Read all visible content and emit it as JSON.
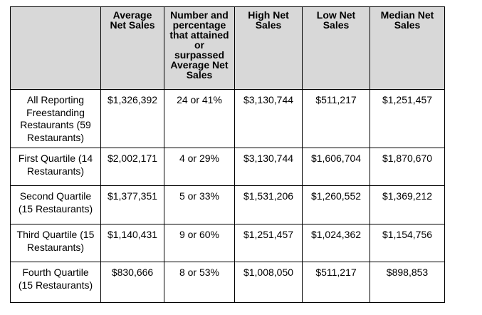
{
  "table": {
    "headers": [
      "",
      "Average Net Sales",
      "Number and percentage that attained or surpassed Average Net Sales",
      "High Net Sales",
      "Low Net Sales",
      "Median Net Sales"
    ],
    "header_lines": {
      "average": [
        "Average",
        "Net Sales"
      ],
      "attained": [
        "Number and",
        "percentage",
        "that attained",
        "or",
        "surpassed",
        "Average Net",
        "Sales"
      ],
      "high": [
        "High Net",
        "Sales"
      ],
      "low": [
        "Low Net",
        "Sales"
      ],
      "median": [
        "Median Net",
        "Sales"
      ]
    },
    "rows": [
      {
        "label_lines": [
          "All Reporting",
          "Freestanding",
          "Restaurants (59",
          "Restaurants)"
        ],
        "average": "$1,326,392",
        "attained": "24 or 41%",
        "high": "$3,130,744",
        "low": "$511,217",
        "median": "$1,251,457"
      },
      {
        "label_lines": [
          "First Quartile (14",
          "Restaurants)"
        ],
        "average": "$2,002,171",
        "attained": "4 or 29%",
        "high": "$3,130,744",
        "low": "$1,606,704",
        "median": "$1,870,670"
      },
      {
        "label_lines": [
          "Second Quartile",
          "(15 Restaurants)"
        ],
        "average": "$1,377,351",
        "attained": "5 or 33%",
        "high": "$1,531,206",
        "low": "$1,260,552",
        "median": "$1,369,212"
      },
      {
        "label_lines": [
          "Third Quartile (15",
          "Restaurants)"
        ],
        "average": "$1,140,431",
        "attained": "9 or 60%",
        "high": "$1,251,457",
        "low": "$1,024,362",
        "median": "$1,154,756"
      },
      {
        "label_lines": [
          "Fourth Quartile",
          "(15 Restaurants)"
        ],
        "average": "$830,666",
        "attained": "8 or 53%",
        "high": "$1,008,050",
        "low": "$511,217",
        "median": "$898,853"
      }
    ]
  }
}
